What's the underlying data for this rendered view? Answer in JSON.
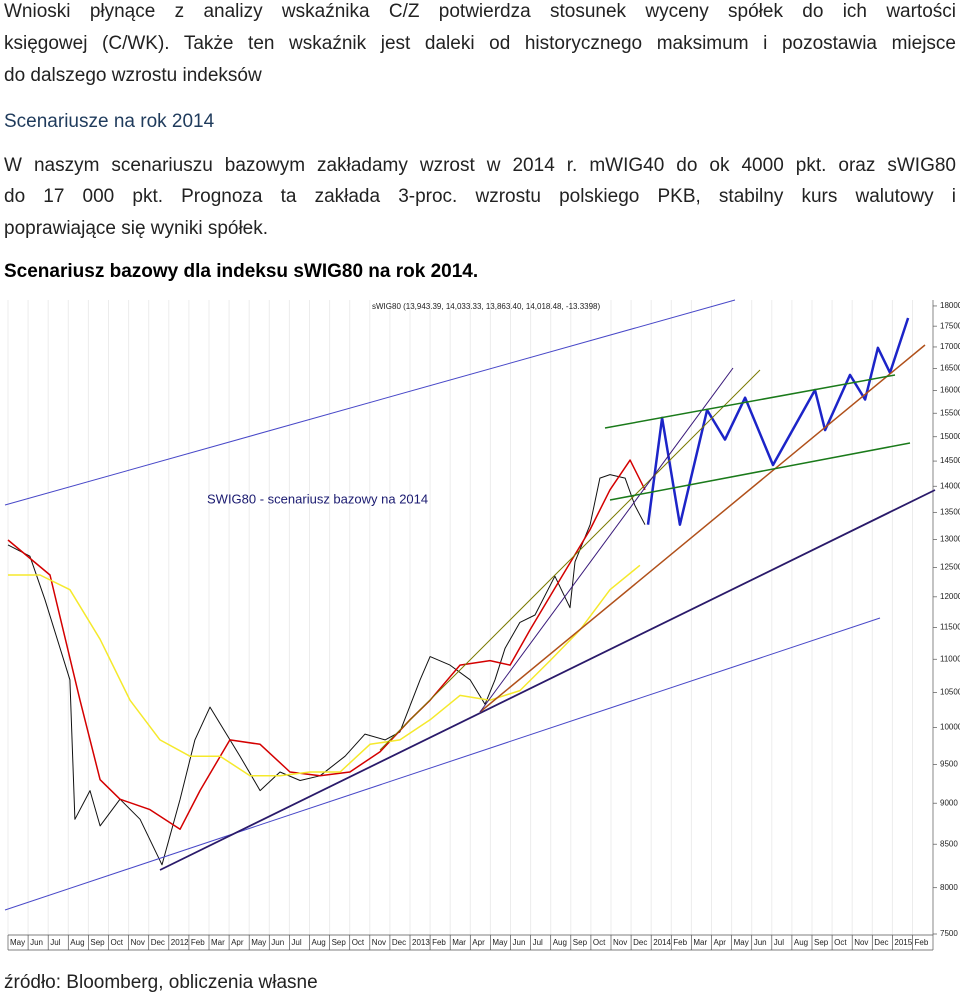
{
  "text": {
    "p1": [
      "Wnioski płynące z analizy wskaźnika C/Z potwierdza stosunek wyceny spółek do ich wartości",
      "księgowej (C/WK). Także ten wskaźnik jest daleki od historycznego maksimum i pozostawia miejsce",
      "do dalszego wzrostu indeksów"
    ],
    "h1": "Scenariusze na rok 2014",
    "p2": [
      "W naszym scenariuszu bazowym zakładamy wzrost w 2014 r. mWIG40 do ok 4000 pkt. oraz sWIG80",
      "do 17 000 pkt. Prognoza ta zakłada 3-proc. wzrostu polskiego PKB, stabilny kurs walutowy i",
      "poprawiające się wyniki spółek."
    ],
    "h2": "Scenariusz bazowy dla indeksu sWIG80 na rok 2014.",
    "source": "źródło: Bloomberg, obliczenia własne"
  },
  "chart_data": {
    "type": "line",
    "legend_text": "sWIG80 (13,943.39, 14,033.33, 13,863.40, 14,018.48, -13.3398)",
    "annotation": "SWIG80 - scenariusz bazowy na 2014",
    "log_scale": true,
    "grid": true,
    "ylim": [
      7500,
      18150
    ],
    "yticks": [
      7500,
      8000,
      8500,
      9000,
      9500,
      10000,
      10500,
      11000,
      11500,
      12000,
      12500,
      13000,
      13500,
      14000,
      14500,
      15000,
      15500,
      16000,
      16500,
      17000,
      17500,
      18000
    ],
    "xlim": [
      0,
      46
    ],
    "xticks": [
      {
        "value": 0,
        "label": "May"
      },
      {
        "value": 1,
        "label": "Jun"
      },
      {
        "value": 2,
        "label": "Jul"
      },
      {
        "value": 3,
        "label": "Aug"
      },
      {
        "value": 4,
        "label": "Sep"
      },
      {
        "value": 5,
        "label": "Oct"
      },
      {
        "value": 6,
        "label": "Nov"
      },
      {
        "value": 7,
        "label": "Dec"
      },
      {
        "value": 8,
        "label": "2012"
      },
      {
        "value": 9,
        "label": "Feb"
      },
      {
        "value": 10,
        "label": "Mar"
      },
      {
        "value": 11,
        "label": "Apr"
      },
      {
        "value": 12,
        "label": "May"
      },
      {
        "value": 13,
        "label": "Jun"
      },
      {
        "value": 14,
        "label": "Jul"
      },
      {
        "value": 15,
        "label": "Aug"
      },
      {
        "value": 16,
        "label": "Sep"
      },
      {
        "value": 17,
        "label": "Oct"
      },
      {
        "value": 18,
        "label": "Nov"
      },
      {
        "value": 19,
        "label": "Dec"
      },
      {
        "value": 20,
        "label": "2013"
      },
      {
        "value": 21,
        "label": "Feb"
      },
      {
        "value": 22,
        "label": "Mar"
      },
      {
        "value": 23,
        "label": "Apr"
      },
      {
        "value": 24,
        "label": "May"
      },
      {
        "value": 25,
        "label": "Jun"
      },
      {
        "value": 26,
        "label": "Jul"
      },
      {
        "value": 27,
        "label": "Aug"
      },
      {
        "value": 28,
        "label": "Sep"
      },
      {
        "value": 29,
        "label": "Oct"
      },
      {
        "value": 30,
        "label": "Nov"
      },
      {
        "value": 31,
        "label": "Dec"
      },
      {
        "value": 32,
        "label": "2014"
      },
      {
        "value": 33,
        "label": "Feb"
      },
      {
        "value": 34,
        "label": "Mar"
      },
      {
        "value": 35,
        "label": "Apr"
      },
      {
        "value": 36,
        "label": "May"
      },
      {
        "value": 37,
        "label": "Jun"
      },
      {
        "value": 38,
        "label": "Jul"
      },
      {
        "value": 39,
        "label": "Aug"
      },
      {
        "value": 40,
        "label": "Sep"
      },
      {
        "value": 41,
        "label": "Oct"
      },
      {
        "value": 42,
        "label": "Nov"
      },
      {
        "value": 43,
        "label": "Dec"
      },
      {
        "value": 44,
        "label": "2015"
      },
      {
        "value": 45,
        "label": "Feb"
      }
    ],
    "series": [
      {
        "color": "#111111",
        "width": 1,
        "x": [
          0,
          1.09,
          1.84,
          3.08,
          3.33,
          4.08,
          4.58,
          5.57,
          6.57,
          7.66,
          8.56,
          9.3,
          10.05,
          10.8,
          11.54,
          12.54,
          13.53,
          14.53,
          15.52,
          16.77,
          17.76,
          18.76,
          19.5,
          20.5,
          21,
          21.99,
          22.99,
          23.73,
          24.23,
          24.73,
          25.47,
          26.22,
          27.21,
          27.96,
          28.21,
          28.96,
          29.45,
          29.95,
          30.7,
          31.19,
          31.69
        ],
        "values": [
          12900,
          12700,
          11950,
          10690,
          8800,
          9160,
          8720,
          9050,
          8800,
          8260,
          9050,
          9830,
          10290,
          9940,
          9610,
          9160,
          9400,
          9290,
          9350,
          9610,
          9910,
          9830,
          9940,
          10690,
          11040,
          10910,
          10690,
          10330,
          10690,
          11170,
          11580,
          11700,
          12350,
          11820,
          12600,
          13270,
          14160,
          14230,
          14160,
          13630,
          13270
        ]
      },
      {
        "color": "#d40000",
        "width": 1.5,
        "x": [
          0,
          2.09,
          3.58,
          4.58,
          5.57,
          7.06,
          8.56,
          9.55,
          11.04,
          12.54,
          14.03,
          15.52,
          17.01,
          18.51,
          20,
          21,
          22.49,
          23.98,
          24.98,
          25.97,
          27.46,
          28.96,
          29.95,
          30.95,
          31.69
        ],
        "values": [
          12990,
          12370,
          10390,
          9300,
          9050,
          8920,
          8680,
          9160,
          9830,
          9770,
          9400,
          9350,
          9400,
          9670,
          10110,
          10390,
          10910,
          10980,
          10910,
          11460,
          12290,
          13180,
          13930,
          14520,
          13930
        ]
      },
      {
        "color": "#f5e92c",
        "width": 1.5,
        "x": [
          0,
          1.59,
          3.08,
          4.58,
          6.07,
          7.56,
          9.05,
          10.55,
          12.04,
          13.53,
          15.02,
          16.52,
          18.01,
          19.5,
          21,
          22.49,
          23.98,
          25.47,
          26.97,
          28.46,
          29.95,
          31.44
        ],
        "values": [
          12370,
          12370,
          12120,
          11310,
          10390,
          9830,
          9610,
          9610,
          9350,
          9350,
          9400,
          9400,
          9770,
          9830,
          10110,
          10460,
          10390,
          10530,
          10980,
          11460,
          12120,
          12540
        ]
      },
      {
        "color": "#1c24c8",
        "width": 2.5,
        "x": [
          31.84,
          32.54,
          33.43,
          34.78,
          35.67,
          36.67,
          38.06,
          40.15,
          40.65,
          41.89,
          42.64,
          43.28,
          43.88,
          44.78
        ],
        "values": [
          13270,
          15400,
          13270,
          15570,
          14940,
          15840,
          14420,
          16010,
          15140,
          16350,
          15800,
          16980,
          16400,
          17700
        ]
      }
    ]
  }
}
